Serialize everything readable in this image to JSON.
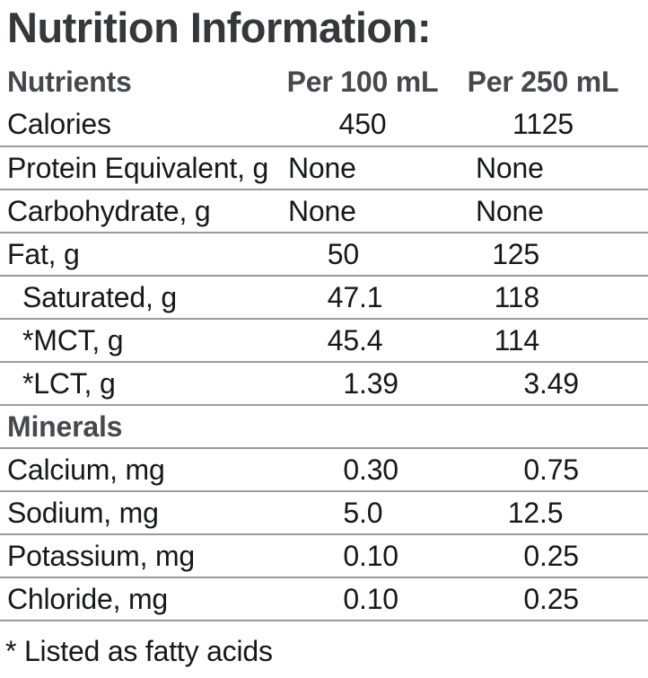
{
  "title": "Nutrition Information:",
  "footnote": "* Listed as fatty acids",
  "colors": {
    "title": "#35373b",
    "heading": "#46484d",
    "text": "#17181a",
    "rule": "#9a9a9a",
    "background": "#ffffff"
  },
  "table": {
    "headers": {
      "nutrients": "Nutrients",
      "per100": "Per 100 mL",
      "per250": "Per 250 mL"
    },
    "rows": [
      {
        "label": "Calories",
        "per100": "450",
        "per250": "1125",
        "mode": "center",
        "indent": false,
        "section": false
      },
      {
        "label": "Protein Equivalent, g",
        "per100": "None",
        "per250": "None",
        "mode": "text",
        "indent": false,
        "section": false
      },
      {
        "label": "Carbohydrate, g",
        "per100": "None",
        "per250": "None",
        "mode": "text",
        "indent": false,
        "section": false
      },
      {
        "label": "Fat, g",
        "per100": "50",
        "per250": "125",
        "mode": "decimal",
        "indent": false,
        "section": false
      },
      {
        "label": "Saturated, g",
        "per100": "47.1",
        "per250": "118",
        "mode": "decimal",
        "indent": true,
        "section": false
      },
      {
        "label": "*MCT, g",
        "per100": "45.4",
        "per250": "114",
        "mode": "decimal",
        "indent": true,
        "section": false
      },
      {
        "label": "*LCT, g",
        "per100": "1.39",
        "per250": "3.49",
        "mode": "decimal",
        "indent": true,
        "section": false
      },
      {
        "label": "Minerals",
        "per100": "",
        "per250": "",
        "mode": "none",
        "indent": false,
        "section": true
      },
      {
        "label": "Calcium, mg",
        "per100": "0.30",
        "per250": "0.75",
        "mode": "decimal",
        "indent": false,
        "section": false
      },
      {
        "label": "Sodium, mg",
        "per100": "5.0",
        "per250": "12.5",
        "mode": "decimal",
        "indent": false,
        "section": false
      },
      {
        "label": "Potassium, mg",
        "per100": "0.10",
        "per250": "0.25",
        "mode": "decimal",
        "indent": false,
        "section": false
      },
      {
        "label": "Chloride, mg",
        "per100": "0.10",
        "per250": "0.25",
        "mode": "decimal",
        "indent": false,
        "section": false
      }
    ]
  }
}
